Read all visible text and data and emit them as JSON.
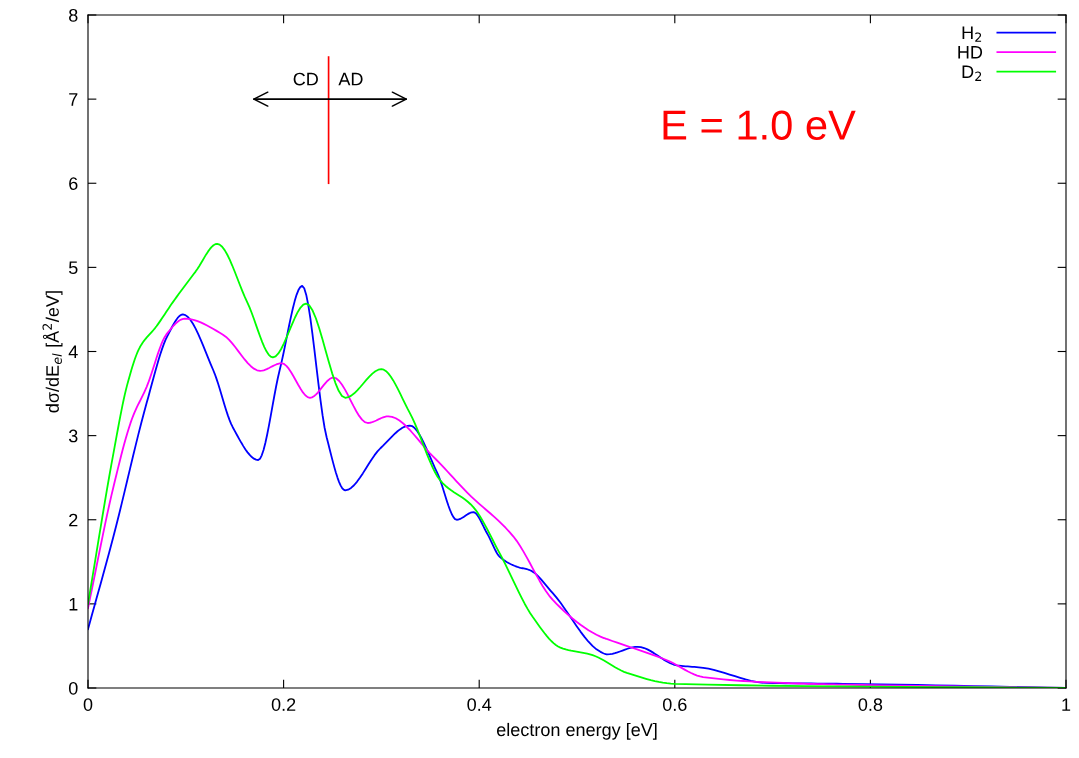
{
  "chart_data": {
    "type": "line",
    "xlabel": "electron energy [eV]",
    "ylabel": "dσ/dE$_{el}$ [Å$^{2}$/eV]",
    "xlim": [
      0,
      1
    ],
    "ylim": [
      0,
      8
    ],
    "xticks": [
      0,
      0.2,
      0.4,
      0.6,
      0.8,
      1
    ],
    "yticks": [
      0,
      1,
      2,
      3,
      4,
      5,
      6,
      7,
      8
    ],
    "grid": false,
    "legend": "top right",
    "marker": "none",
    "line_style": "solid",
    "annotations": [
      "E = 1.0 eV",
      "CD",
      "AD"
    ],
    "series": [
      {
        "name": "H$_{2}$",
        "color": "#0000ff",
        "x": [
          0,
          0.026,
          0.06,
          0.081,
          0.097,
          0.128,
          0.148,
          0.174,
          0.196,
          0.219,
          0.244,
          0.263,
          0.299,
          0.329,
          0.357,
          0.377,
          0.394,
          0.408,
          0.421,
          0.439,
          0.452,
          0.475,
          0.524,
          0.531,
          0.562,
          0.602,
          0.629,
          0.694,
          0.772,
          1
        ],
        "values": [
          0.7,
          1.8,
          3.39,
          4.18,
          4.44,
          3.78,
          3.1,
          2.71,
          3.78,
          4.78,
          2.98,
          2.35,
          2.85,
          3.12,
          2.56,
          2.0,
          2.09,
          1.84,
          1.56,
          1.44,
          1.4,
          1.13,
          0.43,
          0.4,
          0.49,
          0.27,
          0.24,
          0.06,
          0.05,
          0
        ]
      },
      {
        "name": "HD",
        "color": "#ff00ff",
        "x": [
          0,
          0.026,
          0.045,
          0.06,
          0.08,
          0.099,
          0.138,
          0.176,
          0.198,
          0.227,
          0.251,
          0.286,
          0.307,
          0.353,
          0.388,
          0.435,
          0.475,
          0.524,
          0.531,
          0.592,
          0.629,
          0.711,
          0.772,
          1
        ],
        "values": [
          0.95,
          2.39,
          3.2,
          3.58,
          4.2,
          4.39,
          4.2,
          3.77,
          3.86,
          3.45,
          3.69,
          3.15,
          3.23,
          2.75,
          2.32,
          1.8,
          1.05,
          0.61,
          0.58,
          0.33,
          0.13,
          0.06,
          0.04,
          0
        ]
      },
      {
        "name": "D$_{2}$",
        "color": "#00ff00",
        "x": [
          0,
          0.026,
          0.04,
          0.053,
          0.07,
          0.087,
          0.11,
          0.132,
          0.163,
          0.189,
          0.223,
          0.263,
          0.3,
          0.329,
          0.36,
          0.394,
          0.421,
          0.455,
          0.483,
          0.516,
          0.551,
          0.6,
          1
        ],
        "values": [
          1.0,
          2.79,
          3.6,
          4.05,
          4.3,
          4.59,
          4.95,
          5.28,
          4.58,
          3.93,
          4.57,
          3.45,
          3.79,
          3.27,
          2.47,
          2.15,
          1.6,
          0.84,
          0.48,
          0.39,
          0.18,
          0.05,
          0
        ]
      }
    ]
  }
}
